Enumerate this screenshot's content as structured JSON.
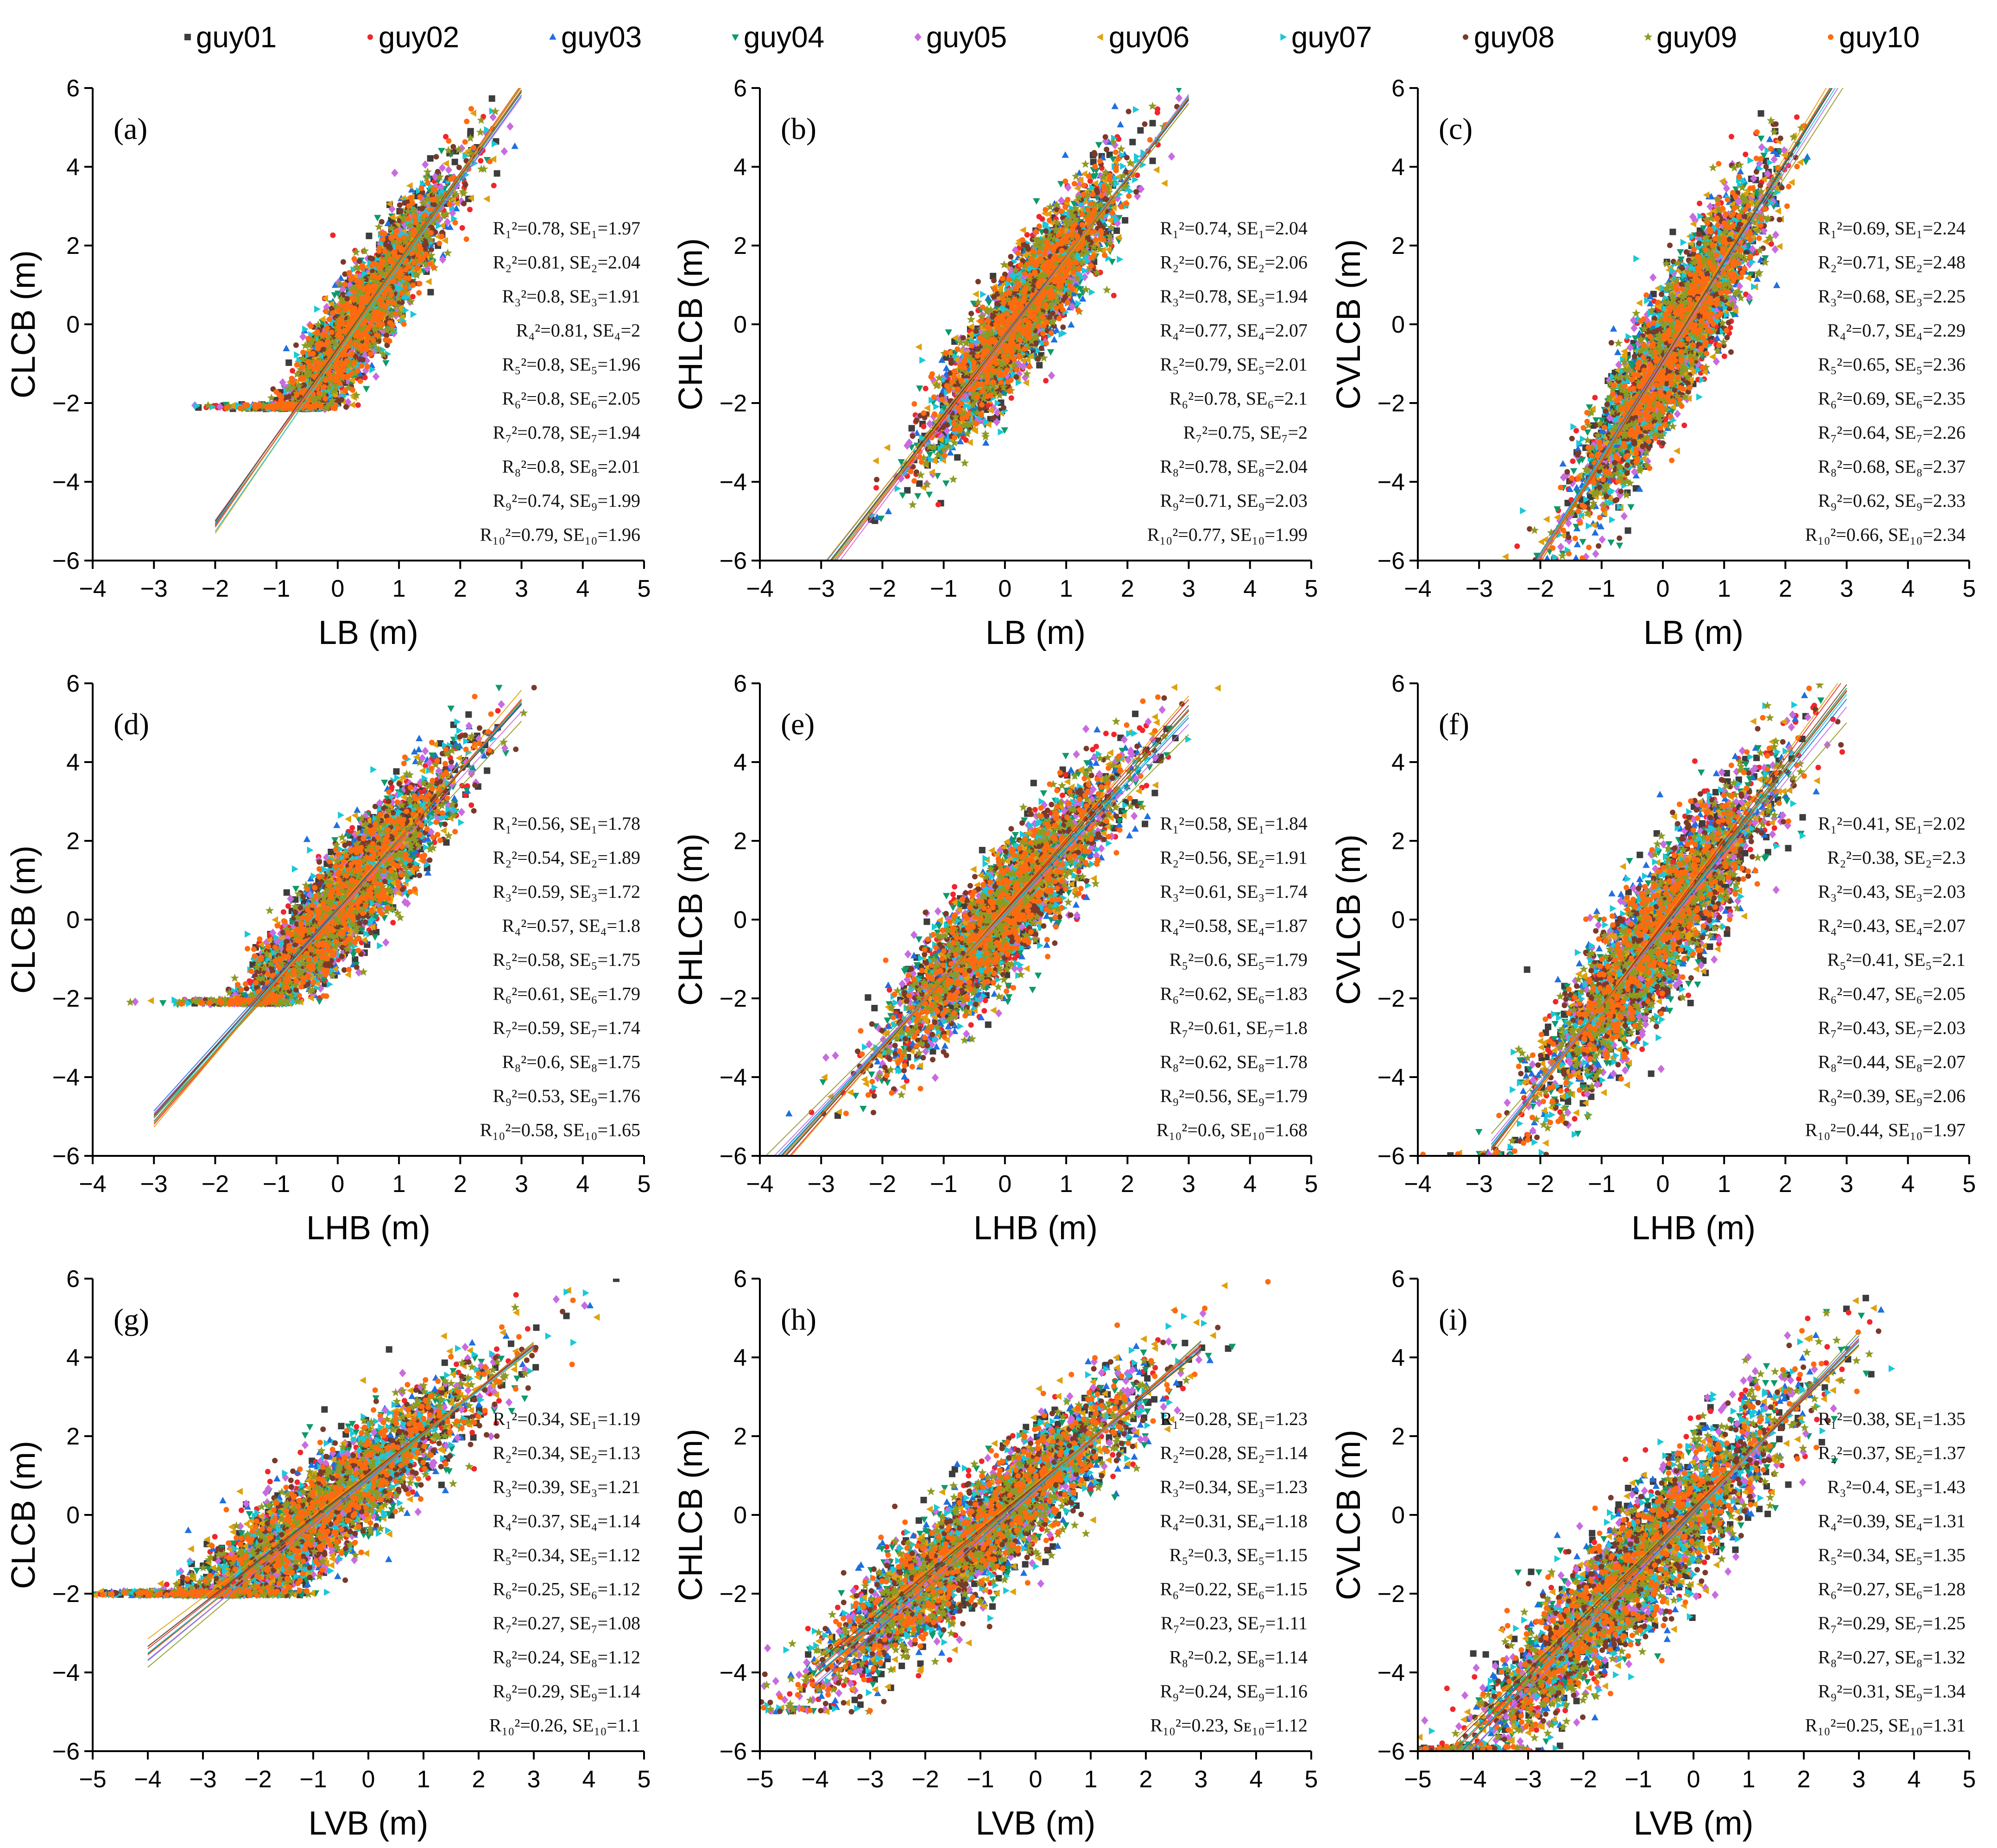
{
  "legend": [
    {
      "name": "guy01",
      "color": "#3d3d3d",
      "marker": "square"
    },
    {
      "name": "guy02",
      "color": "#f0262c",
      "marker": "circle"
    },
    {
      "name": "guy03",
      "color": "#1f6fe0",
      "marker": "triangle-up"
    },
    {
      "name": "guy04",
      "color": "#0d9a6a",
      "marker": "triangle-down"
    },
    {
      "name": "guy05",
      "color": "#c96be0",
      "marker": "diamond"
    },
    {
      "name": "guy06",
      "color": "#e0a10c",
      "marker": "triangle-left"
    },
    {
      "name": "guy07",
      "color": "#18c9d8",
      "marker": "triangle-right"
    },
    {
      "name": "guy08",
      "color": "#7a3a2a",
      "marker": "circle"
    },
    {
      "name": "guy09",
      "color": "#8f9a22",
      "marker": "star"
    },
    {
      "name": "guy10",
      "color": "#ff6a10",
      "marker": "circle"
    }
  ],
  "chart_data": [
    {
      "id": "a",
      "label": "(a)",
      "type": "scatter",
      "xlabel": "LB (m)",
      "ylabel": "CLCB (m)",
      "xlim": [
        -4,
        5
      ],
      "ylim": [
        -6,
        6
      ],
      "xticks": [
        "−4",
        "−3",
        "−2",
        "−1",
        "0",
        "1",
        "2",
        "3",
        "4",
        "5"
      ],
      "yticks": [
        "−6",
        "−4",
        "−2",
        "0",
        "2",
        "4",
        "6"
      ],
      "cloud": {
        "center": [
          0.35,
          0.4
        ],
        "spread": [
          0.75,
          1.2
        ],
        "floor": -2.15
      },
      "fit_lines": [
        {
          "slope": 2.2,
          "intercept": -0.7
        },
        {
          "slope": 2.25,
          "intercept": -0.65
        },
        {
          "slope": 2.18,
          "intercept": -0.72
        },
        {
          "slope": 2.22,
          "intercept": -0.6
        },
        {
          "slope": 2.15,
          "intercept": -0.68
        },
        {
          "slope": 2.28,
          "intercept": -0.75
        },
        {
          "slope": 2.24,
          "intercept": -0.78
        },
        {
          "slope": 2.19,
          "intercept": -0.62
        },
        {
          "slope": 2.21,
          "intercept": -0.7
        },
        {
          "slope": 2.23,
          "intercept": -0.66
        }
      ],
      "fit_range": [
        -2,
        3
      ],
      "annotations": [
        "R₁²=0.78, SE₁=1.97",
        "R₂²=0.81, SE₂=2.04",
        "R₃²=0.8, SE₃=1.91",
        "R₄²=0.81, SE₄=2",
        "R₅²=0.8, SE₅=1.96",
        "R₆²=0.8, SE₆=2.05",
        "R₇²=0.78, SE₇=1.94",
        "R₈²=0.8, SE₈=2.01",
        "R₉²=0.74, SE₉=1.99",
        "R₁₀²=0.79, SE₁₀=1.96"
      ]
    },
    {
      "id": "b",
      "label": "(b)",
      "type": "scatter",
      "xlabel": "LB (m)",
      "ylabel": "CHLCB (m)",
      "xlim": [
        -4,
        5
      ],
      "ylim": [
        -6,
        6
      ],
      "xticks": [
        "−4",
        "−3",
        "−2",
        "−1",
        "0",
        "1",
        "2",
        "3",
        "4",
        "5"
      ],
      "yticks": [
        "−6",
        "−4",
        "−2",
        "0",
        "2",
        "4",
        "6"
      ],
      "cloud": {
        "center": [
          0.3,
          0.2
        ],
        "spread": [
          0.75,
          1.3
        ],
        "floor": -5.0
      },
      "fit_lines": [
        {
          "slope": 2.0,
          "intercept": -0.3
        },
        {
          "slope": 2.05,
          "intercept": -0.35
        },
        {
          "slope": 1.98,
          "intercept": -0.25
        },
        {
          "slope": 2.02,
          "intercept": -0.3
        },
        {
          "slope": 2.08,
          "intercept": -0.4
        },
        {
          "slope": 1.96,
          "intercept": -0.28
        },
        {
          "slope": 2.04,
          "intercept": -0.32
        },
        {
          "slope": 2.01,
          "intercept": -0.3
        },
        {
          "slope": 1.99,
          "intercept": -0.36
        },
        {
          "slope": 2.03,
          "intercept": -0.33
        }
      ],
      "fit_range": [
        -3,
        3
      ],
      "annotations": [
        "R₁²=0.74, SE₁=2.04",
        "R₂²=0.76, SE₂=2.06",
        "R₃²=0.78, SE₃=1.94",
        "R₄²=0.77, SE₄=2.07",
        "R₅²=0.79, SE₅=2.01",
        "R₆²=0.78, SE₆=2.1",
        "R₇²=0.75, SE₇=2",
        "R₈²=0.78, SE₈=2.04",
        "R₉²=0.71, SE₉=2.03",
        "R₁₀²=0.77, SE₁₀=1.99"
      ]
    },
    {
      "id": "c",
      "label": "(c)",
      "type": "scatter",
      "xlabel": "LB (m)",
      "ylabel": "CVLCB (m)",
      "xlim": [
        -4,
        5
      ],
      "ylim": [
        -6,
        6
      ],
      "xticks": [
        "−4",
        "−3",
        "−2",
        "−1",
        "0",
        "1",
        "2",
        "3",
        "4",
        "5"
      ],
      "yticks": [
        "−6",
        "−4",
        "−2",
        "0",
        "2",
        "4",
        "6"
      ],
      "cloud": {
        "center": [
          0.2,
          -0.5
        ],
        "spread": [
          0.75,
          1.6
        ],
        "floor": -6.0
      },
      "fit_lines": [
        {
          "slope": 2.5,
          "intercept": -0.9
        },
        {
          "slope": 2.55,
          "intercept": -0.95
        },
        {
          "slope": 2.48,
          "intercept": -0.85
        },
        {
          "slope": 2.52,
          "intercept": -0.9
        },
        {
          "slope": 2.45,
          "intercept": -1.0
        },
        {
          "slope": 2.58,
          "intercept": -0.88
        },
        {
          "slope": 2.46,
          "intercept": -0.92
        },
        {
          "slope": 2.51,
          "intercept": -0.94
        },
        {
          "slope": 2.4,
          "intercept": -1.05
        },
        {
          "slope": 2.53,
          "intercept": -0.89
        }
      ],
      "fit_range": [
        -2.2,
        3
      ],
      "annotations": [
        "R₁²=0.69, SE₁=2.24",
        "R₂²=0.71, SE₂=2.48",
        "R₃²=0.68, SE₃=2.25",
        "R₄²=0.7, SE₄=2.29",
        "R₅²=0.65, SE₅=2.36",
        "R₆²=0.69, SE₆=2.35",
        "R₇²=0.64, SE₇=2.26",
        "R₈²=0.68, SE₈=2.37",
        "R₉²=0.62, SE₉=2.33",
        "R₁₀²=0.66, SE₁₀=2.34"
      ]
    },
    {
      "id": "d",
      "label": "(d)",
      "type": "scatter",
      "xlabel": "LHB (m)",
      "ylabel": "CLCB (m)",
      "xlim": [
        -4,
        5
      ],
      "ylim": [
        -6,
        6
      ],
      "xticks": [
        "−4",
        "−3",
        "−2",
        "−1",
        "0",
        "1",
        "2",
        "3",
        "4",
        "5"
      ],
      "yticks": [
        "−6",
        "−4",
        "−2",
        "0",
        "2",
        "4",
        "6"
      ],
      "cloud": {
        "center": [
          0.1,
          0.4
        ],
        "spread": [
          0.9,
          1.3
        ],
        "floor": -2.15
      },
      "fit_lines": [
        {
          "slope": 1.75,
          "intercept": 0.25
        },
        {
          "slope": 1.8,
          "intercept": 0.2
        },
        {
          "slope": 1.72,
          "intercept": 0.3
        },
        {
          "slope": 1.78,
          "intercept": 0.22
        },
        {
          "slope": 1.7,
          "intercept": 0.18
        },
        {
          "slope": 1.85,
          "intercept": 0.28
        },
        {
          "slope": 1.76,
          "intercept": 0.24
        },
        {
          "slope": 1.74,
          "intercept": 0.26
        },
        {
          "slope": 1.68,
          "intercept": 0.0
        },
        {
          "slope": 1.79,
          "intercept": 0.21
        }
      ],
      "fit_range": [
        -3,
        3
      ],
      "annotations": [
        "R₁²=0.56, SE₁=1.78",
        "R₂²=0.54, SE₂=1.89",
        "R₃²=0.59, SE₃=1.72",
        "R₄²=0.57, SE₄=1.8",
        "R₅²=0.58, SE₅=1.75",
        "R₆²=0.61, SE₆=1.79",
        "R₇²=0.59, SE₇=1.74",
        "R₈²=0.6, SE₈=1.75",
        "R₉²=0.53, SE₉=1.76",
        "R₁₀²=0.58, SE₁₀=1.65"
      ]
    },
    {
      "id": "e",
      "label": "(e)",
      "type": "scatter",
      "xlabel": "LHB (m)",
      "ylabel": "CHLCB (m)",
      "xlim": [
        -4,
        5
      ],
      "ylim": [
        -6,
        6
      ],
      "xticks": [
        "−4",
        "−3",
        "−2",
        "−1",
        "0",
        "1",
        "2",
        "3",
        "4",
        "5"
      ],
      "yticks": [
        "−6",
        "−4",
        "−2",
        "0",
        "2",
        "4",
        "6"
      ],
      "cloud": {
        "center": [
          0.0,
          0.1
        ],
        "spread": [
          0.95,
          1.4
        ],
        "floor": -5.0
      },
      "fit_lines": [
        {
          "slope": 1.7,
          "intercept": 0.2
        },
        {
          "slope": 1.78,
          "intercept": 0.25
        },
        {
          "slope": 1.66,
          "intercept": 0.15
        },
        {
          "slope": 1.72,
          "intercept": 0.18
        },
        {
          "slope": 1.62,
          "intercept": 0.1
        },
        {
          "slope": 1.8,
          "intercept": 0.28
        },
        {
          "slope": 1.68,
          "intercept": 0.16
        },
        {
          "slope": 1.74,
          "intercept": 0.22
        },
        {
          "slope": 1.55,
          "intercept": 0.05
        },
        {
          "slope": 1.71,
          "intercept": 0.19
        }
      ],
      "fit_range": [
        -4,
        3
      ],
      "annotations": [
        "R₁²=0.58, SE₁=1.84",
        "R₂²=0.56, SE₂=1.91",
        "R₃²=0.61, SE₃=1.74",
        "R₄²=0.58, SE₄=1.87",
        "R₅²=0.6, SE₅=1.79",
        "R₆²=0.62, SE₆=1.83",
        "R₇²=0.61, SE₇=1.8",
        "R₈²=0.62, SE₈=1.78",
        "R₉²=0.56, SE₉=1.79",
        "R₁₀²=0.6, SE₁₀=1.68"
      ]
    },
    {
      "id": "f",
      "label": "(f)",
      "type": "scatter",
      "xlabel": "LHB (m)",
      "ylabel": "CVLCB (m)",
      "xlim": [
        -4,
        5
      ],
      "ylim": [
        -6,
        6
      ],
      "xticks": [
        "−4",
        "−3",
        "−2",
        "−1",
        "0",
        "1",
        "2",
        "3",
        "4",
        "5"
      ],
      "yticks": [
        "−6",
        "−4",
        "−2",
        "0",
        "2",
        "4",
        "6"
      ],
      "cloud": {
        "center": [
          -0.1,
          -0.6
        ],
        "spread": [
          0.95,
          1.7
        ],
        "floor": -6.0
      },
      "fit_lines": [
        {
          "slope": 2.0,
          "intercept": -0.2
        },
        {
          "slope": 2.1,
          "intercept": -0.1
        },
        {
          "slope": 1.95,
          "intercept": -0.25
        },
        {
          "slope": 2.02,
          "intercept": -0.18
        },
        {
          "slope": 1.9,
          "intercept": -0.3
        },
        {
          "slope": 2.12,
          "intercept": -0.05
        },
        {
          "slope": 1.98,
          "intercept": -0.22
        },
        {
          "slope": 2.04,
          "intercept": -0.15
        },
        {
          "slope": 1.8,
          "intercept": -0.4
        },
        {
          "slope": 2.01,
          "intercept": -0.2
        }
      ],
      "fit_range": [
        -2.8,
        3
      ],
      "annotations": [
        "R₁²=0.41, SE₁=2.02",
        "R₂²=0.38, SE₂=2.3",
        "R₃²=0.43, SE₃=2.03",
        "R₄²=0.43, SE₄=2.07",
        "R₅²=0.41, SE₅=2.1",
        "R₆²=0.47, SE₆=2.05",
        "R₇²=0.43, SE₇=2.03",
        "R₈²=0.44, SE₈=2.07",
        "R₉²=0.39, SE₉=2.06",
        "R₁₀²=0.44, SE₁₀=1.97"
      ]
    },
    {
      "id": "g",
      "label": "(g)",
      "type": "scatter",
      "xlabel": "LVB (m)",
      "ylabel": "CLCB (m)",
      "xlim": [
        -5,
        5
      ],
      "ylim": [
        -6,
        6
      ],
      "xticks": [
        "−5",
        "−4",
        "−3",
        "−2",
        "−1",
        "0",
        "1",
        "2",
        "3",
        "4",
        "5"
      ],
      "yticks": [
        "−6",
        "−4",
        "−2",
        "0",
        "2",
        "4",
        "6"
      ],
      "cloud": {
        "center": [
          -1.0,
          0.3
        ],
        "spread": [
          1.5,
          1.3
        ],
        "floor": -2.05
      },
      "fit_lines": [
        {
          "slope": 1.12,
          "intercept": 0.95
        },
        {
          "slope": 1.1,
          "intercept": 1.0
        },
        {
          "slope": 1.15,
          "intercept": 0.9
        },
        {
          "slope": 1.08,
          "intercept": 0.98
        },
        {
          "slope": 1.14,
          "intercept": 0.88
        },
        {
          "slope": 1.05,
          "intercept": 1.05
        },
        {
          "slope": 1.11,
          "intercept": 0.93
        },
        {
          "slope": 1.09,
          "intercept": 1.02
        },
        {
          "slope": 1.18,
          "intercept": 0.85
        },
        {
          "slope": 1.13,
          "intercept": 0.96
        }
      ],
      "fit_range": [
        -4,
        3
      ],
      "annotations": [
        "R₁²=0.34, SE₁=1.19",
        "R₂²=0.34, SE₂=1.13",
        "R₃²=0.39, SE₃=1.21",
        "R₄²=0.37, SE₄=1.14",
        "R₅²=0.34, SE₅=1.12",
        "R₆²=0.25, SE₆=1.12",
        "R₇²=0.27, SE₇=1.08",
        "R₈²=0.24, SE₈=1.12",
        "R₉²=0.29, SE₉=1.14",
        "R₁₀²=0.26, SE₁₀=1.1"
      ]
    },
    {
      "id": "h",
      "label": "(h)",
      "type": "scatter",
      "xlabel": "LVB (m)",
      "ylabel": "CHLCB (m)",
      "xlim": [
        -5,
        5
      ],
      "ylim": [
        -6,
        6
      ],
      "xticks": [
        "−5",
        "−4",
        "−3",
        "−2",
        "−1",
        "0",
        "1",
        "2",
        "3",
        "4",
        "5"
      ],
      "yticks": [
        "−6",
        "−4",
        "−2",
        "0",
        "2",
        "4",
        "6"
      ],
      "cloud": {
        "center": [
          -1.0,
          -0.3
        ],
        "spread": [
          1.5,
          1.4
        ],
        "floor": -5.0
      },
      "fit_lines": [
        {
          "slope": 1.2,
          "intercept": 0.7
        },
        {
          "slope": 1.18,
          "intercept": 0.75
        },
        {
          "slope": 1.25,
          "intercept": 0.65
        },
        {
          "slope": 1.16,
          "intercept": 0.72
        },
        {
          "slope": 1.22,
          "intercept": 0.6
        },
        {
          "slope": 1.12,
          "intercept": 0.8
        },
        {
          "slope": 1.19,
          "intercept": 0.68
        },
        {
          "slope": 1.14,
          "intercept": 0.76
        },
        {
          "slope": 1.28,
          "intercept": 0.58
        },
        {
          "slope": 1.21,
          "intercept": 0.71
        }
      ],
      "fit_range": [
        -4,
        3
      ],
      "annotations": [
        "R₁²=0.28, SE₁=1.23",
        "R₂²=0.28, SE₂=1.14",
        "R₃²=0.34, SE₃=1.23",
        "R₄²=0.31, SE₄=1.18",
        "R₅²=0.3, SE₅=1.15",
        "R₆²=0.22, SE₆=1.15",
        "R₇²=0.23, SE₇=1.11",
        "R₈²=0.2, SE₈=1.14",
        "R₉²=0.24, SE₉=1.16",
        "R₁₀²=0.23, Sᴇ₁₀=1.12"
      ]
    },
    {
      "id": "i",
      "label": "(i)",
      "type": "scatter",
      "xlabel": "LVB (m)",
      "ylabel": "CVLCB (m)",
      "xlim": [
        -5,
        5
      ],
      "ylim": [
        -6,
        6
      ],
      "xticks": [
        "−5",
        "−4",
        "−3",
        "−2",
        "−1",
        "0",
        "1",
        "2",
        "3",
        "4",
        "5"
      ],
      "yticks": [
        "−6",
        "−4",
        "−2",
        "0",
        "2",
        "4",
        "6"
      ],
      "cloud": {
        "center": [
          -1.1,
          -1.0
        ],
        "spread": [
          1.5,
          1.6
        ],
        "floor": -6.0
      },
      "fit_lines": [
        {
          "slope": 1.45,
          "intercept": 0.1
        },
        {
          "slope": 1.42,
          "intercept": 0.15
        },
        {
          "slope": 1.5,
          "intercept": 0.05
        },
        {
          "slope": 1.4,
          "intercept": 0.12
        },
        {
          "slope": 1.48,
          "intercept": 0.0
        },
        {
          "slope": 1.36,
          "intercept": 0.2
        },
        {
          "slope": 1.44,
          "intercept": 0.08
        },
        {
          "slope": 1.38,
          "intercept": 0.18
        },
        {
          "slope": 1.55,
          "intercept": 0.0
        },
        {
          "slope": 1.46,
          "intercept": 0.1
        }
      ],
      "fit_range": [
        -4.3,
        3
      ],
      "annotations": [
        "R₁²=0.38, SE₁=1.35",
        "R₂²=0.37, SE₂=1.37",
        "R₃²=0.4, SE₃=1.43",
        "R₄²=0.39, SE₄=1.31",
        "R₅²=0.34, SE₅=1.35",
        "R₆²=0.27, SE₆=1.28",
        "R₇²=0.29, SE₇=1.25",
        "R₈²=0.27, SE₈=1.32",
        "R₉²=0.31, SE₉=1.34",
        "R₁₀²=0.25, SE₁₀=1.31"
      ]
    }
  ]
}
